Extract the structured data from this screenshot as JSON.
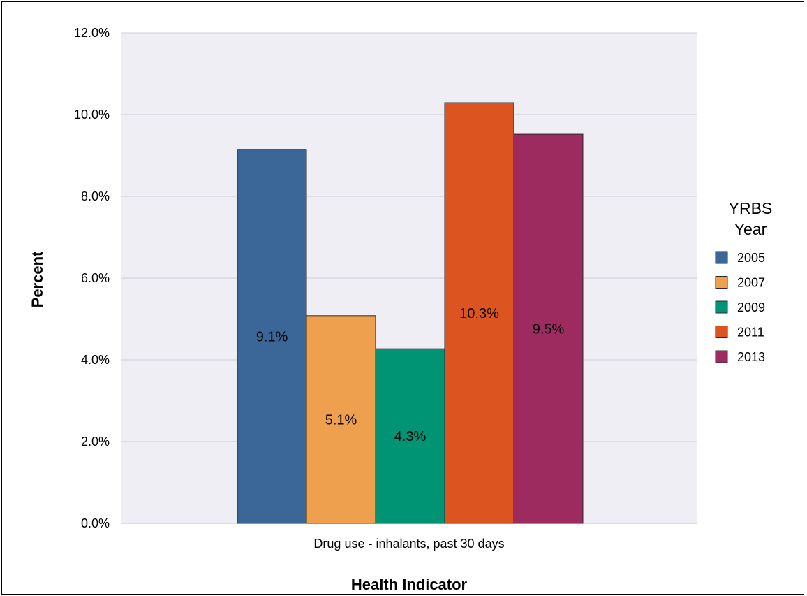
{
  "chart_data": {
    "type": "bar",
    "title": "",
    "xlabel": "Health Indicator",
    "ylabel": "Percent",
    "categories": [
      "Drug use - inhalants, past 30 days"
    ],
    "ylim": [
      0,
      12
    ],
    "yticks": [
      0,
      2,
      4,
      6,
      8,
      10,
      12
    ],
    "ytick_labels": [
      "0.0%",
      "2.0%",
      "4.0%",
      "6.0%",
      "8.0%",
      "10.0%",
      "12.0%"
    ],
    "grid": true,
    "legend_position": "right",
    "legend_title_lines": [
      "YRBS",
      "Year"
    ],
    "series": [
      {
        "name": "2005",
        "color": "#3b6698",
        "values": [
          9.15
        ],
        "label": "9.1%"
      },
      {
        "name": "2007",
        "color": "#eea04f",
        "values": [
          5.08
        ],
        "label": "5.1%"
      },
      {
        "name": "2009",
        "color": "#009474",
        "values": [
          4.27
        ],
        "label": "4.3%"
      },
      {
        "name": "2011",
        "color": "#dc5520",
        "values": [
          10.29
        ],
        "label": "10.3%"
      },
      {
        "name": "2013",
        "color": "#9d2b5f",
        "values": [
          9.52
        ],
        "label": "9.5%"
      }
    ]
  }
}
